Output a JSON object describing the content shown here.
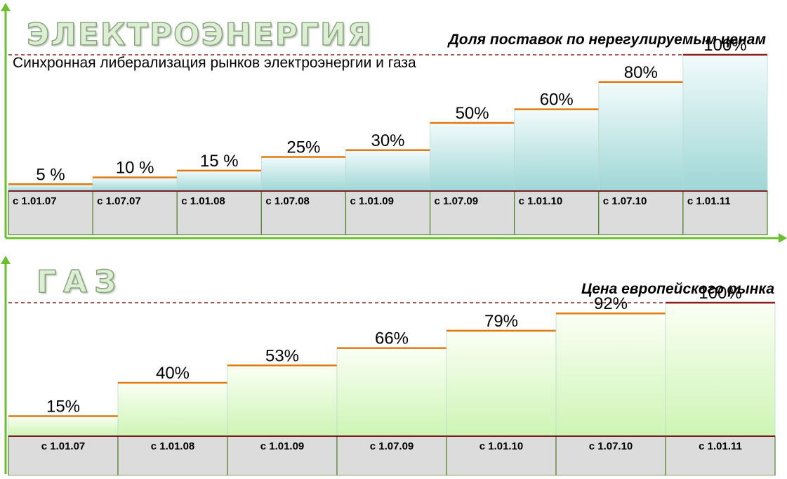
{
  "electricity": {
    "title": "ЭЛЕКТРОЭНЕРГИЯ",
    "caption": "Доля поставок по нерегулируемым ценам",
    "subtitle": "Синхронная либерализация рынков электроэнергии и газа"
  },
  "gas": {
    "title": "ГАЗ",
    "caption": "Цена европейского рынка"
  },
  "colors": {
    "axis": "#6bbf2f",
    "step_top": "#e07a10",
    "dashed_line": "#8b2020",
    "electricity_fill_top": "#f2fbfb",
    "electricity_fill_bottom": "#9fd6d6",
    "gas_fill_top": "#fbfff5",
    "gas_fill_bottom": "#cdf5b4",
    "label_cell": "#dcdcdc",
    "label_border": "#4f7f2a"
  },
  "chart_data": [
    {
      "type": "bar",
      "name": "electricity",
      "categories": [
        "с 1.01.07",
        "с 1.07.07",
        "с 1.01.08",
        "с 1.07.08",
        "с 1.01.09",
        "с 1.07.09",
        "с 1.01.10",
        "с 1.07.10",
        "с 1.01.11"
      ],
      "values": [
        5,
        10,
        15,
        25,
        30,
        50,
        60,
        80,
        100
      ],
      "data_labels": [
        "5 %",
        "10 %",
        "15 %",
        "25%",
        "30%",
        "50%",
        "60%",
        "80%",
        "100%"
      ],
      "ylim": [
        0,
        100
      ],
      "grid": false,
      "title": "ЭЛЕКТРОЭНЕРГИЯ"
    },
    {
      "type": "bar",
      "name": "gas",
      "categories": [
        "с 1.01.07",
        "с 1.01.08",
        "с 1.01.09",
        "с 1.07.09",
        "с 1.01.10",
        "с 1.07.10",
        "с 1.01.11"
      ],
      "values": [
        15,
        40,
        53,
        66,
        79,
        92,
        100
      ],
      "data_labels": [
        "15%",
        "40%",
        "53%",
        "66%",
        "79%",
        "92%",
        "100%"
      ],
      "ylim": [
        0,
        100
      ],
      "grid": false,
      "title": "ГАЗ"
    }
  ]
}
